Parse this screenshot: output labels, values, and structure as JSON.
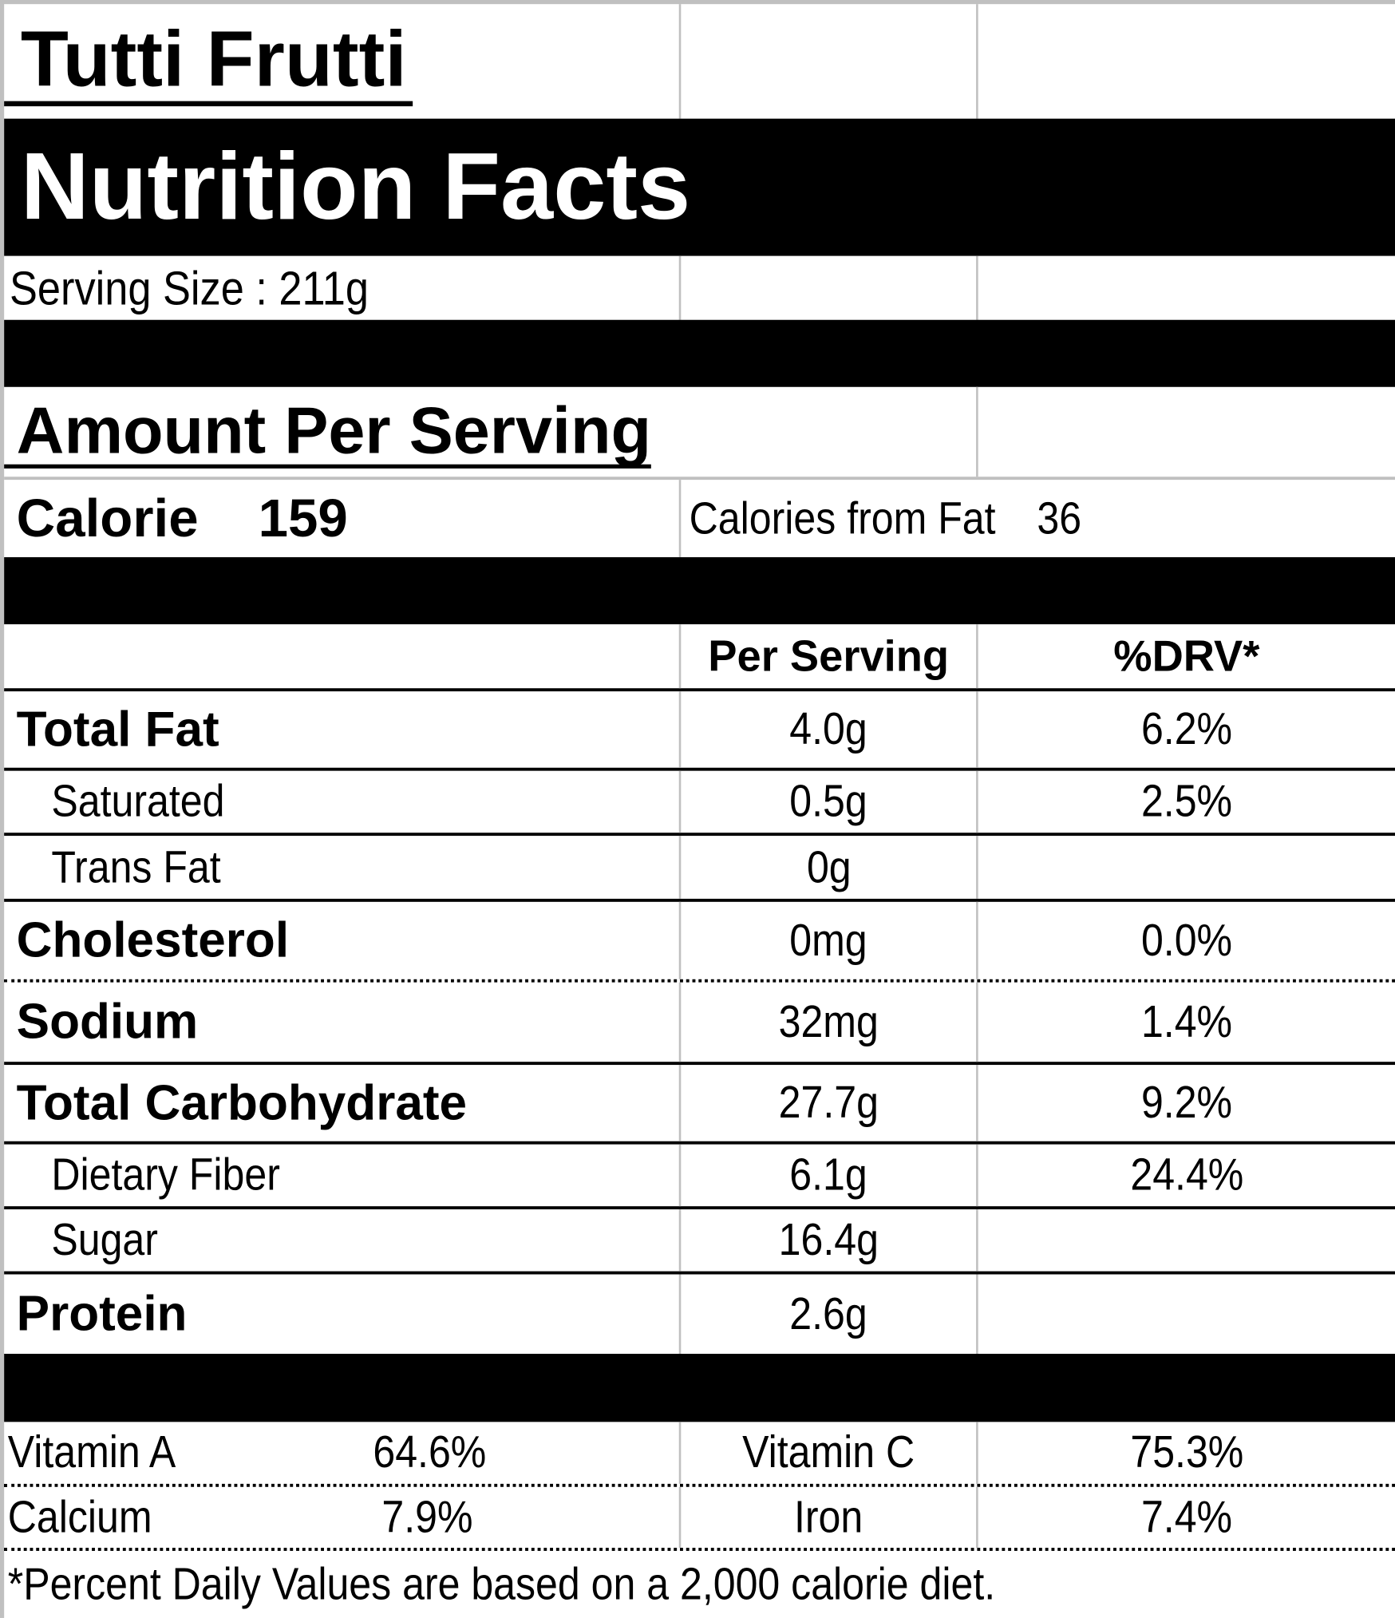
{
  "product_name": "Tutti Frutti",
  "title": "Nutrition Facts",
  "serving_size": "Serving Size  : 211g",
  "amount_per_serving": "Amount Per Serving",
  "calorie_label": "Calorie",
  "calorie_value": "159",
  "calories_from_fat_label": "Calories from Fat",
  "calories_from_fat_value": "36",
  "column_headers": {
    "per_serving": "Per Serving",
    "drv": "%DRV*"
  },
  "nutrients": [
    {
      "name": "Total Fat",
      "amount": "4.0g",
      "drv": "6.2%"
    },
    {
      "name": "Saturated",
      "amount": "0.5g",
      "drv": "2.5%"
    },
    {
      "name": "Trans Fat",
      "amount": "0g",
      "drv": ""
    },
    {
      "name": "Cholesterol",
      "amount": "0mg",
      "drv": "0.0%"
    },
    {
      "name": "Sodium",
      "amount": "32mg",
      "drv": "1.4%"
    },
    {
      "name": "Total Carbohydrate",
      "amount": "27.7g",
      "drv": "9.2%"
    },
    {
      "name": "Dietary Fiber",
      "amount": "6.1g",
      "drv": "24.4%"
    },
    {
      "name": "Sugar",
      "amount": "16.4g",
      "drv": ""
    },
    {
      "name": "Protein",
      "amount": "2.6g",
      "drv": ""
    }
  ],
  "vitamins": [
    {
      "name1": "Vitamin A",
      "value1": "64.6%",
      "name2": "Vitamin C",
      "value2": "75.3%"
    },
    {
      "name1": "Calcium",
      "value1": "7.9%",
      "name2": "Iron",
      "value2": "7.4%"
    }
  ],
  "footnote": "*Percent Daily Values are based on a 2,000 calorie diet."
}
